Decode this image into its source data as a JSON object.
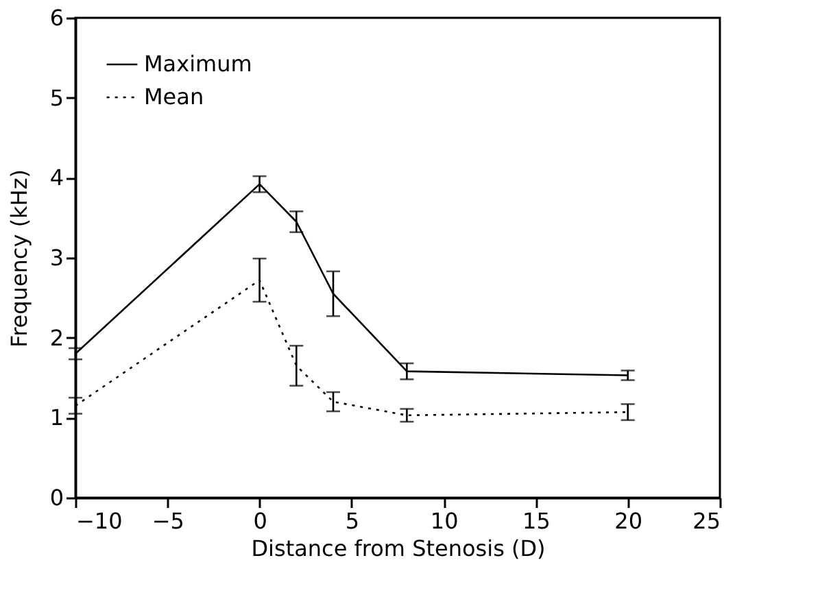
{
  "chart_data": {
    "type": "line",
    "xlabel": "Distance from Stenosis (D)",
    "ylabel": "Frequency (kHz)",
    "x": [
      -10,
      0,
      2,
      4,
      8,
      20
    ],
    "series": [
      {
        "name": "Maximum",
        "color": "#000000",
        "line_style": "solid",
        "values": [
          1.8,
          3.92,
          3.45,
          2.55,
          1.58,
          1.53
        ],
        "errors": [
          0.07,
          0.1,
          0.13,
          0.28,
          0.1,
          0.06
        ]
      },
      {
        "name": "Mean",
        "color": "#000000",
        "line_style": "dotted",
        "values": [
          1.15,
          2.72,
          1.65,
          1.2,
          1.03,
          1.07
        ],
        "errors": [
          0.1,
          0.27,
          0.25,
          0.12,
          0.08,
          0.1
        ]
      }
    ],
    "xlim": [
      -10,
      25
    ],
    "xticks": [
      -10,
      -5,
      0,
      5,
      10,
      15,
      20,
      25
    ],
    "ylim": [
      0,
      6
    ],
    "yticks": [
      0,
      1,
      2,
      3,
      4,
      5,
      6
    ],
    "grid": false,
    "legend": "top left",
    "marker": "none"
  }
}
